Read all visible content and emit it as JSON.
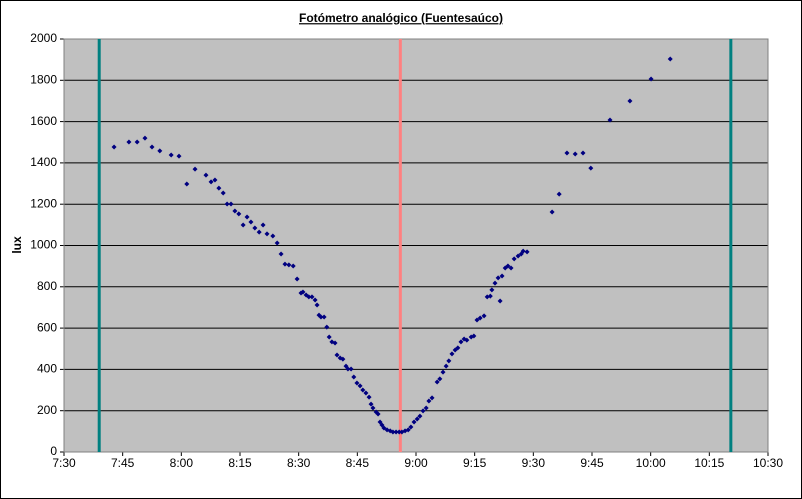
{
  "chart_data": {
    "type": "scatter",
    "title": "Fotómetro analógico (Fuentesaúco)",
    "y_label": "lux",
    "xlim": [
      450,
      630
    ],
    "ylim": [
      0,
      2000
    ],
    "xticks": [
      {
        "value": 450,
        "label": "7:30"
      },
      {
        "value": 465,
        "label": "7:45"
      },
      {
        "value": 480,
        "label": "8:00"
      },
      {
        "value": 495,
        "label": "8:15"
      },
      {
        "value": 510,
        "label": "8:30"
      },
      {
        "value": 525,
        "label": "8:45"
      },
      {
        "value": 540,
        "label": "9:00"
      },
      {
        "value": 555,
        "label": "9:15"
      },
      {
        "value": 570,
        "label": "9:30"
      },
      {
        "value": 585,
        "label": "9:45"
      },
      {
        "value": 600,
        "label": "10:00"
      },
      {
        "value": 615,
        "label": "10:15"
      },
      {
        "value": 630,
        "label": "10:30"
      }
    ],
    "yticks": [
      0,
      200,
      400,
      600,
      800,
      1000,
      1200,
      1400,
      1600,
      1800,
      2000
    ],
    "grid": true,
    "vlines": [
      {
        "value": 459,
        "color": "#008080"
      },
      {
        "value": 536,
        "color": "#ff8080"
      },
      {
        "value": 620.5,
        "color": "#008080"
      }
    ],
    "series": [
      {
        "color": "#000080",
        "x": [
          462.8,
          466.6,
          468.7,
          470.7,
          472.5,
          474.5,
          477.4,
          479.4,
          481.4,
          483.5,
          486.3,
          487.6,
          488.6,
          489.6,
          490.7,
          491.7,
          492.7,
          493.7,
          494.7,
          495.8,
          496.8,
          497.8,
          498.8,
          499.9,
          500.9,
          501.9,
          503.4,
          504.5,
          505.5,
          506.5,
          507.5,
          508.6,
          509.6,
          510.6,
          511.1,
          511.9,
          512.6,
          513.4,
          514.2,
          514.7,
          515.2,
          515.7,
          516.5,
          517.2,
          517.8,
          518.5,
          519.3,
          519.8,
          520.6,
          521.3,
          522.1,
          522.6,
          523.4,
          524.1,
          524.9,
          525.7,
          526.4,
          527.2,
          528.0,
          528.5,
          529.0,
          529.8,
          530.3,
          530.8,
          531.3,
          531.8,
          532.6,
          533.4,
          534.1,
          534.9,
          535.7,
          536.4,
          537.2,
          538.0,
          538.7,
          539.5,
          540.3,
          541.0,
          541.8,
          542.6,
          543.3,
          544.1,
          545.4,
          546.1,
          546.9,
          547.7,
          548.4,
          549.2,
          550.0,
          550.7,
          551.5,
          552.3,
          553.0,
          554.1,
          554.8,
          555.6,
          556.4,
          557.4,
          558.2,
          559.0,
          559.4,
          560.2,
          561.0,
          561.5,
          562.0,
          562.8,
          563.5,
          564.3,
          565.1,
          566.1,
          566.9,
          567.4,
          568.4,
          574.8,
          576.6,
          578.6,
          580.7,
          582.7,
          584.7,
          589.6,
          594.7,
          600.1,
          605.0
        ],
        "values": [
          1477,
          1501,
          1501,
          1520,
          1477,
          1458,
          1438,
          1433,
          1298,
          1370,
          1341,
          1308,
          1317,
          1278,
          1254,
          1201,
          1201,
          1167,
          1153,
          1099,
          1138,
          1114,
          1085,
          1065,
          1099,
          1056,
          1046,
          1012,
          959,
          910,
          906,
          901,
          838,
          770,
          775,
          760,
          751,
          751,
          736,
          712,
          663,
          654,
          654,
          605,
          557,
          533,
          528,
          470,
          455,
          450,
          416,
          402,
          402,
          363,
          334,
          320,
          300,
          286,
          266,
          232,
          213,
          194,
          184,
          145,
          131,
          116,
          107,
          102,
          97,
          97,
          97,
          97,
          102,
          107,
          121,
          145,
          160,
          174,
          199,
          213,
          247,
          262,
          339,
          354,
          387,
          416,
          441,
          475,
          494,
          504,
          533,
          547,
          542,
          557,
          562,
          639,
          649,
          659,
          751,
          755,
          785,
          818,
          843,
          731,
          852,
          891,
          901,
          891,
          935,
          949,
          959,
          973,
          969,
          1162,
          1249,
          1448,
          1443,
          1448,
          1375,
          1608,
          1700,
          1806,
          1903
        ]
      }
    ]
  }
}
